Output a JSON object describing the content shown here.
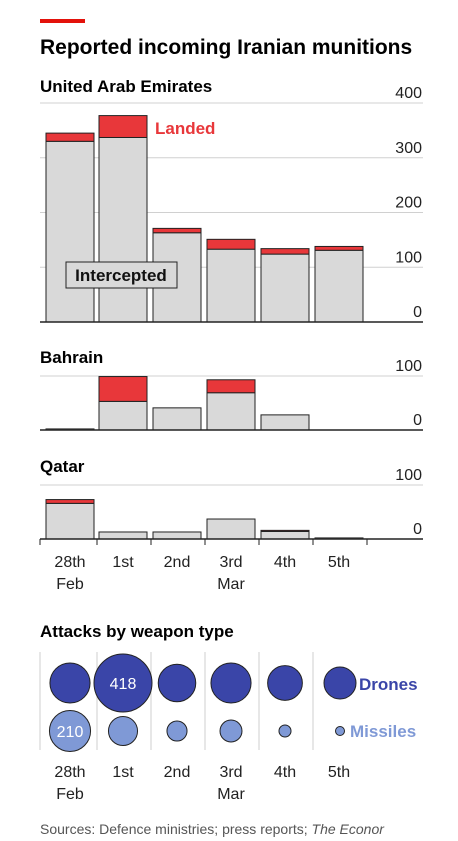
{
  "title": "Reported incoming Iranian munitions",
  "accent_color": "#e3120b",
  "landed_color": "#e8373a",
  "intercepted_color": "#d9d9d9",
  "panel_label_intercepted": "Intercepted",
  "panel_label_landed": "Landed",
  "chart_data": [
    {
      "type": "bar",
      "title": "United Arab Emirates",
      "stacked": true,
      "categories": [
        "28th Feb",
        "1st",
        "2nd",
        "3rd Mar",
        "4th",
        "5th"
      ],
      "series": [
        {
          "name": "Intercepted",
          "values": [
            330,
            337,
            163,
            133,
            124,
            131
          ]
        },
        {
          "name": "Landed",
          "values": [
            15,
            40,
            8,
            18,
            10,
            7
          ]
        }
      ],
      "ylim": [
        0,
        400
      ],
      "yticks": [
        0,
        100,
        200,
        300,
        400
      ],
      "grid": true
    },
    {
      "type": "bar",
      "title": "Bahrain",
      "stacked": true,
      "categories": [
        "28th Feb",
        "1st",
        "2nd",
        "3rd Mar",
        "4th",
        "5th"
      ],
      "series": [
        {
          "name": "Intercepted",
          "values": [
            2,
            53,
            41,
            69,
            28,
            0
          ]
        },
        {
          "name": "Landed",
          "values": [
            0,
            46,
            0,
            24,
            0,
            0
          ]
        }
      ],
      "ylim": [
        0,
        100
      ],
      "yticks": [
        0,
        100
      ],
      "grid": true
    },
    {
      "type": "bar",
      "title": "Qatar",
      "stacked": true,
      "categories": [
        "28th Feb",
        "1st",
        "2nd",
        "3rd Mar",
        "4th",
        "5th"
      ],
      "series": [
        {
          "name": "Intercepted",
          "values": [
            66,
            13,
            13,
            37,
            14,
            2
          ]
        },
        {
          "name": "Landed",
          "values": [
            7,
            0,
            0,
            0,
            2,
            0
          ]
        }
      ],
      "ylim": [
        0,
        100
      ],
      "yticks": [
        0,
        100
      ],
      "grid": true
    },
    {
      "type": "scatter",
      "title": "Attacks by weapon type",
      "categories": [
        "28th Feb",
        "1st",
        "2nd",
        "3rd Mar",
        "4th",
        "5th"
      ],
      "series": [
        {
          "name": "Drones",
          "color": "#3a45a8",
          "values": [
            200,
            418,
            175,
            200,
            150,
            null
          ]
        },
        {
          "name": "Missiles",
          "color": "#7f99d6",
          "values": [
            210,
            105,
            50,
            60,
            18,
            null
          ]
        }
      ],
      "bubble_labels": {
        "drones_index": 1,
        "drones_text": "418",
        "missiles_index": 0,
        "missiles_text": "210"
      },
      "legend": [
        "Drones",
        "Missiles"
      ]
    }
  ],
  "x_labels": [
    {
      "day": "28th",
      "month": "Feb"
    },
    {
      "day": "1st",
      "month": ""
    },
    {
      "day": "2nd",
      "month": ""
    },
    {
      "day": "3rd",
      "month": "Mar"
    },
    {
      "day": "4th",
      "month": ""
    },
    {
      "day": "5th",
      "month": ""
    }
  ],
  "source": "Sources: Defence ministries; press reports; ",
  "source_brand": "The Econor"
}
